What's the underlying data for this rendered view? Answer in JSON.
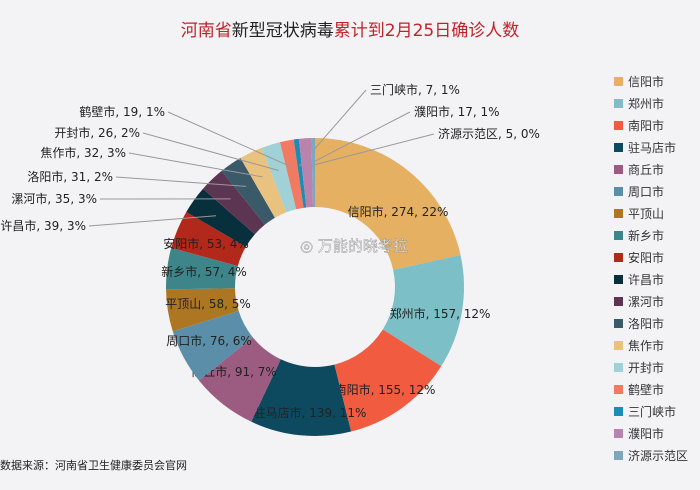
{
  "title": {
    "part1": "河南省",
    "part2": "新型冠状病毒",
    "part3": "累计到2月25日确诊人数"
  },
  "source": "数据来源：河南省卫生健康委员会官网",
  "watermark": "万能的晓考拉",
  "chart_data": {
    "type": "pie",
    "donut": true,
    "title": "河南省新型冠状病毒累计到2月25日确诊人数",
    "legend_position": "right",
    "slices": [
      {
        "name": "信阳市",
        "value": 274,
        "percent": "22%",
        "color": "#e6b062"
      },
      {
        "name": "郑州市",
        "value": 157,
        "percent": "12%",
        "color": "#7cbfc6"
      },
      {
        "name": "南阳市",
        "value": 155,
        "percent": "12%",
        "color": "#f15b40"
      },
      {
        "name": "驻马店市",
        "value": 139,
        "percent": "11%",
        "color": "#0e4a5f"
      },
      {
        "name": "商丘市",
        "value": 91,
        "percent": "7%",
        "color": "#9c5b80"
      },
      {
        "name": "周口市",
        "value": 76,
        "percent": "6%",
        "color": "#5b8fa9"
      },
      {
        "name": "平顶山",
        "value": 58,
        "percent": "5%",
        "color": "#ad7622"
      },
      {
        "name": "新乡市",
        "value": 57,
        "percent": "4%",
        "color": "#3d8589"
      },
      {
        "name": "安阳市",
        "value": 53,
        "percent": "4%",
        "color": "#b2281a"
      },
      {
        "name": "许昌市",
        "value": 39,
        "percent": "3%",
        "color": "#082f3c"
      },
      {
        "name": "漯河市",
        "value": 35,
        "percent": "3%",
        "color": "#5c3552"
      },
      {
        "name": "洛阳市",
        "value": 31,
        "percent": "2%",
        "color": "#3b5a69"
      },
      {
        "name": "焦作市",
        "value": 32,
        "percent": "3%",
        "color": "#eac27f"
      },
      {
        "name": "开封市",
        "value": 26,
        "percent": "2%",
        "color": "#9fd1d7"
      },
      {
        "name": "鹤壁市",
        "value": 19,
        "percent": "1%",
        "color": "#f27a62"
      },
      {
        "name": "三门峡市",
        "value": 7,
        "percent": "1%",
        "color": "#1b8db5"
      },
      {
        "name": "濮阳市",
        "value": 17,
        "percent": "1%",
        "color": "#b883ad"
      },
      {
        "name": "济源示范区",
        "value": 5,
        "percent": "0%",
        "color": "#7fa6bd"
      }
    ]
  }
}
